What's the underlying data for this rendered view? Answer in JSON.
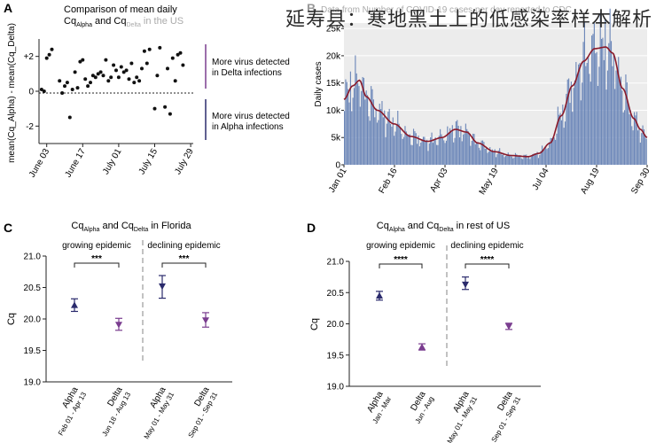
{
  "watermark": "延寿县：寒地黑土上的低感染率样本解析",
  "colors": {
    "dark": "#111111",
    "navy": "#2a2a6c",
    "purple": "#7a3d8f",
    "bar": "#6b86b8",
    "smooth": "#8a1a2a",
    "divider": "#999999"
  },
  "chart_data": [
    {
      "panel": "A",
      "type": "scatter",
      "title_line1": "Comparison of mean daily",
      "title_line2_parts": [
        "Cq",
        "Alpha",
        " and Cq",
        "Delta",
        " in the US"
      ],
      "ylabel": "mean(Cq_Alpha) - mean(Cq_Delta)",
      "ytick_labels": [
        "+2",
        "0",
        "-2"
      ],
      "ylim": [
        -3,
        3
      ],
      "xtick_labels": [
        "June 03",
        "June 17",
        "July 01",
        "July 15",
        "July 29"
      ],
      "xlim": [
        0,
        60
      ],
      "reference_line": 0,
      "annotations": [
        {
          "lines": [
            "More virus detected",
            "in Delta infections"
          ],
          "color": "#7a3d8f"
        },
        {
          "lines": [
            "More virus detected",
            "in Alpha infections"
          ],
          "color": "#2a2a6c"
        }
      ],
      "x": [
        1,
        2,
        3,
        4,
        5,
        8,
        9,
        10,
        11,
        12,
        13,
        14,
        15,
        16,
        17,
        18,
        19,
        20,
        21,
        22,
        23,
        24,
        25,
        26,
        27,
        28,
        29,
        30,
        31,
        32,
        33,
        34,
        35,
        36,
        37,
        38,
        39,
        40,
        41,
        42,
        43,
        45,
        46,
        47,
        49,
        50,
        51,
        52,
        53,
        54,
        55,
        56
      ],
      "y": [
        0.1,
        0,
        1.9,
        2.1,
        2.4,
        0.6,
        -0.1,
        0.3,
        0.5,
        -1.5,
        0.1,
        1.1,
        0.2,
        1.7,
        1.8,
        0.7,
        0.3,
        0.5,
        0.9,
        0.8,
        1,
        1.1,
        0.9,
        1.8,
        0.6,
        0.8,
        1.5,
        1.2,
        0.8,
        1.4,
        1.1,
        1.2,
        0.7,
        1.6,
        0.5,
        0.8,
        0.6,
        1.3,
        2.3,
        1.6,
        2.4,
        -1,
        0.9,
        2.5,
        -0.9,
        1.3,
        -1.3,
        1.9,
        0.6,
        2.1,
        2.2,
        1.5
      ]
    },
    {
      "panel": "B",
      "type": "bar",
      "title": "Data from Number of COVID-19 cases per day reported to CDC",
      "ylabel": "Daily cases",
      "ytick_labels": [
        "0",
        "5k",
        "10k",
        "15k",
        "20k",
        "25k"
      ],
      "ylim": [
        0,
        26000
      ],
      "xtick_labels": [
        "Jan 01",
        "Feb 16",
        "Apr 03",
        "May 19",
        "Jul 04",
        "Aug 19",
        "Sep 30"
      ],
      "smooth_anchors": [
        [
          0,
          12000
        ],
        [
          8,
          14500
        ],
        [
          14,
          15500
        ],
        [
          20,
          12500
        ],
        [
          30,
          10000
        ],
        [
          45,
          7500
        ],
        [
          60,
          5200
        ],
        [
          75,
          4300
        ],
        [
          88,
          5000
        ],
        [
          100,
          6500
        ],
        [
          110,
          6000
        ],
        [
          120,
          4000
        ],
        [
          135,
          2400
        ],
        [
          150,
          1700
        ],
        [
          165,
          1500
        ],
        [
          175,
          2100
        ],
        [
          185,
          4000
        ],
        [
          195,
          9000
        ],
        [
          205,
          14500
        ],
        [
          215,
          19000
        ],
        [
          225,
          21300
        ],
        [
          235,
          21600
        ],
        [
          241,
          20500
        ],
        [
          250,
          14000
        ],
        [
          260,
          8500
        ],
        [
          266,
          6500
        ],
        [
          272,
          5000
        ]
      ],
      "day_range": [
        0,
        272
      ],
      "bar_count": 250
    },
    {
      "panel": "C",
      "type": "scatter",
      "title_parts": [
        "Cq",
        "Alpha",
        " and Cq",
        "Delta",
        " in Florida"
      ],
      "ylabel": "Cq",
      "ytick_labels": [
        "21.0",
        "20.5",
        "20.0",
        "19.5",
        "19.0"
      ],
      "ylim": [
        19.0,
        21.0
      ],
      "groups": [
        {
          "label": "growing epidemic",
          "sig": "***"
        },
        {
          "label": "declining epidemic",
          "sig": "***"
        }
      ],
      "categories": [
        {
          "name": "Alpha",
          "date": "Feb 01 - Apr 13",
          "value": 20.22,
          "low": 20.12,
          "high": 20.32,
          "marker": "up"
        },
        {
          "name": "Delta",
          "date": "Jun 18 - Aug 13",
          "value": 19.91,
          "low": 19.82,
          "high": 20.01,
          "marker": "down"
        },
        {
          "name": "Alpha",
          "date": "May 01 - May 31",
          "value": 20.52,
          "low": 20.33,
          "high": 20.69,
          "marker": "down"
        },
        {
          "name": "Delta",
          "date": "Sep 01 - Sep 31",
          "value": 19.98,
          "low": 19.87,
          "high": 20.1,
          "marker": "down"
        }
      ]
    },
    {
      "panel": "D",
      "type": "scatter",
      "title_parts": [
        "Cq",
        "Alpha",
        " and Cq",
        "Delta",
        " in rest of US"
      ],
      "ylabel": "Cq",
      "ytick_labels": [
        "21.0",
        "20.5",
        "20.0",
        "19.5",
        "19.0"
      ],
      "ylim": [
        19.0,
        21.0
      ],
      "groups": [
        {
          "label": "growing epidemic",
          "sig": "****"
        },
        {
          "label": "declining epidemic",
          "sig": "****"
        }
      ],
      "categories": [
        {
          "name": "Alpha",
          "date": "Jan - Mar",
          "value": 20.45,
          "low": 20.38,
          "high": 20.52,
          "marker": "up"
        },
        {
          "name": "Delta",
          "date": "Jun - Aug",
          "value": 19.63,
          "low": 19.58,
          "high": 19.68,
          "marker": "up"
        },
        {
          "name": "Alpha",
          "date": "May 01 - May 31",
          "value": 20.63,
          "low": 20.55,
          "high": 20.75,
          "marker": "down"
        },
        {
          "name": "Delta",
          "date": "Sep 01 - Sep 31",
          "value": 19.96,
          "low": 19.91,
          "high": 20.01,
          "marker": "down"
        }
      ]
    }
  ],
  "panel_labels": [
    "A",
    "B",
    "C",
    "D"
  ]
}
